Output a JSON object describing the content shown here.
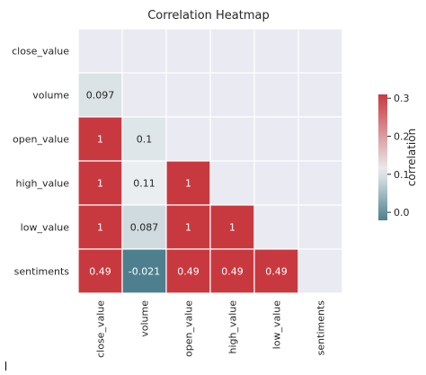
{
  "chart_data": {
    "type": "heatmap",
    "title": "Correlation Heatmap",
    "variables": [
      "close_value",
      "volume",
      "open_value",
      "high_value",
      "low_value",
      "sentiments"
    ],
    "mask": "upper-triangle-and-diagonal",
    "matrix": [
      [
        null,
        null,
        null,
        null,
        null,
        null
      ],
      [
        0.097,
        null,
        null,
        null,
        null,
        null
      ],
      [
        1,
        0.1,
        null,
        null,
        null,
        null
      ],
      [
        1,
        0.11,
        1,
        null,
        null,
        null
      ],
      [
        1,
        0.087,
        1,
        1,
        null,
        null
      ],
      [
        0.49,
        -0.021,
        0.49,
        0.49,
        0.49,
        null
      ]
    ],
    "annotations": [
      [
        "",
        "",
        "",
        "",
        "",
        ""
      ],
      [
        "0.097",
        "",
        "",
        "",
        "",
        ""
      ],
      [
        "1",
        "0.1",
        "",
        "",
        "",
        ""
      ],
      [
        "1",
        "0.11",
        "1",
        "",
        "",
        ""
      ],
      [
        "1",
        "0.087",
        "1",
        "1",
        "",
        ""
      ],
      [
        "0.49",
        "-0.021",
        "0.49",
        "0.49",
        "0.49",
        ""
      ]
    ],
    "colorbar": {
      "label": "correlation",
      "range": [
        -0.021,
        0.31
      ],
      "ticks": [
        0.0,
        0.1,
        0.2,
        0.3
      ],
      "tick_labels": [
        "0.0",
        "0.1",
        "0.2",
        "0.3"
      ],
      "colors": [
        "#4e7f8f",
        "#eaeef0",
        "#c8393f"
      ],
      "center": 0.11
    },
    "mask_color": "#eaeaf2",
    "grid_color": "#ffffff"
  }
}
